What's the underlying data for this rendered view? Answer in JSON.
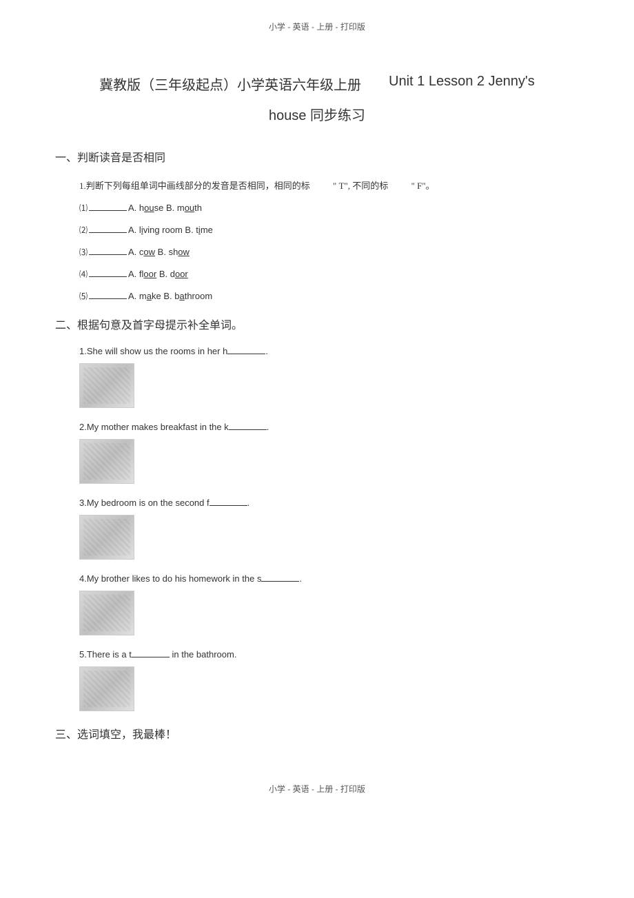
{
  "header": "小学 - 英语 - 上册 - 打印版",
  "title": {
    "cn": "冀教版（三年级起点）小学英语六年级上册",
    "en": "Unit 1 Lesson 2 Jenny's",
    "line2": "house  同步练习"
  },
  "section1": {
    "header": "一、判断读音是否相同",
    "instruction": "1.判断下列每组单词中画线部分的发音是否相同，相同的标",
    "t_label": "\" T\",",
    "different_label": "不同的标",
    "f_label": "\" F\"。",
    "items": [
      {
        "num": "⑴",
        "a_prefix": "A. h",
        "a_underlined": "ou",
        "a_suffix": "se",
        "b_prefix": "B. m",
        "b_underlined": "ou",
        "b_suffix": "th"
      },
      {
        "num": "⑵",
        "a_prefix": "A. l",
        "a_underlined": "i",
        "a_suffix": "ving room",
        "b_prefix": "B. t",
        "b_underlined": "i",
        "b_suffix": "me"
      },
      {
        "num": "⑶",
        "a_prefix": "A. c",
        "a_underlined": "ow",
        "a_suffix": "",
        "b_prefix": "B. sh",
        "b_underlined": "ow",
        "b_suffix": ""
      },
      {
        "num": "⑷",
        "a_prefix": "A. fl",
        "a_underlined": "oor",
        "a_suffix": "",
        "b_prefix": "B. d",
        "b_underlined": "oor",
        "b_suffix": ""
      },
      {
        "num": "⑸",
        "a_prefix": "A. m",
        "a_underlined": "a",
        "a_suffix": "ke",
        "b_prefix": "B. b",
        "b_underlined": "a",
        "b_suffix": "throom"
      }
    ]
  },
  "section2": {
    "header": "二、根据句意及首字母提示补全单词。",
    "items": [
      {
        "text_before": "1.She will show us the rooms in her h",
        "text_after": "."
      },
      {
        "text_before": "2.My mother makes breakfast in the k",
        "text_after": "."
      },
      {
        "text_before": "3.My bedroom is on the second f",
        "text_after": "."
      },
      {
        "text_before": "4.My brother likes to do his homework in the s",
        "text_after": "."
      },
      {
        "text_before": "5.There is a t",
        "text_after": " in the bathroom."
      }
    ]
  },
  "section3": {
    "header": "三、选词填空，我最棒！"
  },
  "footer": "小学 - 英语 - 上册 - 打印版"
}
